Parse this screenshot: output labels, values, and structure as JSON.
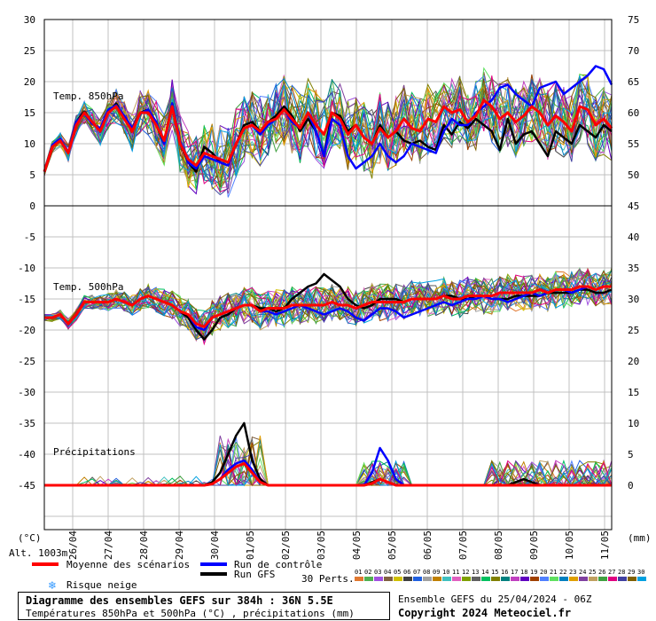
{
  "chart_data": {
    "type": "line",
    "title": "Diagramme des ensembles GEFS sur 384h : 36N 5.5E",
    "subtitle": "Températures 850hPa et 500hPa (°C) , précipitations (mm)",
    "run_info": "Ensemble GEFS du 25/04/2024 - 06Z",
    "copyright": "Copyright 2024 Meteociel.fr",
    "altitude": "Alt. 1003m",
    "unit_left": "(°C)",
    "unit_right": "(mm)",
    "x_labels": [
      "26/04",
      "27/04",
      "28/04",
      "29/04",
      "30/04",
      "01/05",
      "02/05",
      "03/05",
      "04/05",
      "05/05",
      "06/05",
      "07/05",
      "08/05",
      "09/05",
      "10/05",
      "11/05"
    ],
    "left_ticks": [
      30,
      25,
      20,
      15,
      10,
      5,
      0,
      -5,
      -10,
      -15,
      -20,
      -25,
      -30,
      -35,
      -40,
      -45
    ],
    "right_ticks_top": [
      75,
      70,
      65,
      60,
      55,
      50
    ],
    "right_ticks_bottom": [
      45,
      40,
      35,
      30,
      25,
      20,
      15,
      10,
      5,
      0
    ],
    "panels": {
      "t850": "Temp. 850hPa",
      "t500": "Temp. 500hPa",
      "precip": "Précipitations"
    },
    "legend": {
      "mean": "Moyenne des scénarios",
      "control": "Run de contrôle",
      "gfs": "Run GFS",
      "snow": "Risque neige",
      "perts": "30 Perts.",
      "pert_numbers": [
        "01",
        "02",
        "03",
        "04",
        "05",
        "06",
        "07",
        "08",
        "09",
        "10",
        "11",
        "12",
        "13",
        "14",
        "15",
        "16",
        "17",
        "18",
        "19",
        "20",
        "21",
        "22",
        "23",
        "24",
        "25",
        "26",
        "27",
        "28",
        "29",
        "30"
      ]
    },
    "colors": {
      "mean": "#ff0000",
      "control": "#0000ff",
      "gfs": "#000000",
      "pert_colors": [
        "#e07830",
        "#50b050",
        "#a050e0",
        "#806040",
        "#d0c000",
        "#404040",
        "#2060e0",
        "#a0a0a0",
        "#c08000",
        "#40c0c0",
        "#e060c0",
        "#80a000",
        "#606060",
        "#00c060",
        "#808000",
        "#008080",
        "#c040c0",
        "#6000c0",
        "#a04000",
        "#5080ff",
        "#60e060",
        "#0080c0",
        "#e0a000",
        "#8040a0",
        "#c0a060",
        "#40a040",
        "#e00080",
        "#4040a0",
        "#806000",
        "#00a0e0"
      ]
    },
    "series": [
      {
        "name": "Moyenne des scénarios",
        "panel": "t850",
        "values": [
          5.5,
          9.5,
          10.5,
          8.5,
          13,
          15,
          13.5,
          12,
          15,
          16,
          14,
          12,
          15,
          15,
          13,
          10.5,
          16,
          10,
          7.5,
          6.5,
          8.5,
          8,
          7.5,
          7,
          10,
          12.5,
          13,
          12,
          13.5,
          14,
          15.5,
          14,
          12.5,
          15,
          13,
          11.5,
          15,
          14,
          11.5,
          13,
          11,
          10,
          12.5,
          11,
          12,
          14,
          12.5,
          12,
          14,
          13.5,
          16,
          15,
          15.5,
          13.5,
          14.5,
          17,
          16,
          14,
          15,
          13.5,
          14.5,
          16,
          15,
          13,
          14.5,
          13.5,
          12,
          16,
          15.5,
          13,
          14,
          12.5
        ]
      },
      {
        "name": "Run de contrôle",
        "panel": "t850",
        "values": [
          5.5,
          9.8,
          10.8,
          8.5,
          13.5,
          14.8,
          13.2,
          12.5,
          15.5,
          16.2,
          14.5,
          12.5,
          14.8,
          15.5,
          13.5,
          10,
          16.5,
          10.5,
          7,
          6,
          8,
          7.5,
          7,
          6.5,
          10,
          12.5,
          13,
          11.5,
          13,
          14,
          15.5,
          13.5,
          12.5,
          15,
          12,
          8,
          14,
          13,
          8,
          6,
          7,
          8,
          10,
          8,
          7,
          8,
          10,
          9.5,
          9,
          8.5,
          12,
          14,
          13,
          13,
          15,
          16,
          17,
          19,
          19.5,
          18,
          17,
          16,
          19,
          19.5,
          20,
          18,
          19,
          20,
          21,
          22.5,
          22,
          19.5
        ]
      },
      {
        "name": "Run GFS",
        "panel": "t850",
        "values": [
          5.5,
          9.5,
          10.5,
          8.5,
          13.5,
          15.2,
          13.5,
          12,
          15,
          16.5,
          14,
          12.5,
          15,
          15.5,
          13,
          10,
          16.5,
          10,
          7,
          5.5,
          9.5,
          8.5,
          7,
          6.5,
          10,
          13,
          13.5,
          12,
          13.5,
          14.5,
          16,
          14.5,
          12,
          14,
          12,
          8,
          15,
          14.5,
          12,
          13,
          11,
          10,
          13,
          11,
          12,
          10.5,
          10,
          10.5,
          9.5,
          9,
          13,
          11.5,
          13.5,
          12.5,
          14,
          13,
          12,
          9,
          14,
          10,
          11.5,
          12,
          10,
          8,
          12,
          11,
          10,
          13,
          12,
          11,
          13,
          12
        ]
      },
      {
        "name": "Moyenne des scénarios",
        "panel": "t500",
        "values": [
          -18,
          -18,
          -17.5,
          -19,
          -17.5,
          -15.5,
          -15.5,
          -15.5,
          -15.5,
          -15,
          -15.5,
          -16,
          -15,
          -14.5,
          -15,
          -15.5,
          -16,
          -17,
          -17.5,
          -19,
          -19.5,
          -18,
          -17.5,
          -17,
          -16.5,
          -16,
          -16,
          -17,
          -16.5,
          -16.5,
          -16.5,
          -16,
          -16,
          -16,
          -16,
          -16,
          -15.5,
          -16,
          -16,
          -16.5,
          -16,
          -15.5,
          -15.5,
          -15.5,
          -15.5,
          -15.5,
          -15,
          -15,
          -15,
          -15,
          -14.5,
          -15,
          -15,
          -14.5,
          -14.5,
          -14.5,
          -14.5,
          -14,
          -14,
          -14,
          -14,
          -14,
          -13.5,
          -14,
          -13.5,
          -13.5,
          -13.5,
          -13,
          -13,
          -13.5,
          -13,
          -13
        ]
      },
      {
        "name": "Run de contrôle",
        "panel": "t500",
        "values": [
          -18,
          -18,
          -17.5,
          -19,
          -17.5,
          -15.5,
          -15.5,
          -15.5,
          -15.5,
          -15,
          -15.5,
          -16,
          -15,
          -14.5,
          -15,
          -15.5,
          -16,
          -17,
          -17.5,
          -19.5,
          -20,
          -18,
          -17.5,
          -17,
          -16.5,
          -16,
          -16,
          -17,
          -17,
          -17.5,
          -17,
          -16.5,
          -16,
          -16.5,
          -17,
          -17.5,
          -17,
          -16.5,
          -17,
          -18,
          -18.5,
          -17.5,
          -16.5,
          -16.5,
          -17,
          -18,
          -17.5,
          -17,
          -16.5,
          -16,
          -15.5,
          -16,
          -15.5,
          -15,
          -15,
          -14.5,
          -15,
          -15,
          -15.5,
          -15,
          -14.5,
          -14,
          -14.5,
          -14,
          -13.5,
          -13.5,
          -14,
          -13.5,
          -13,
          -13.5,
          -13,
          -13
        ]
      },
      {
        "name": "Run GFS",
        "panel": "t500",
        "values": [
          -18,
          -18,
          -17.5,
          -19,
          -17.5,
          -15.5,
          -15.5,
          -15.5,
          -15.5,
          -15,
          -15.5,
          -16,
          -15,
          -14.5,
          -15,
          -15.5,
          -16,
          -17,
          -18,
          -20,
          -21.5,
          -20,
          -18,
          -17.5,
          -16.5,
          -16,
          -16,
          -16.5,
          -16.5,
          -17,
          -16.5,
          -15,
          -14,
          -13,
          -12.5,
          -11,
          -12,
          -13,
          -15,
          -16,
          -16.5,
          -16,
          -15,
          -15,
          -15,
          -15.5,
          -15,
          -15,
          -15,
          -15,
          -14.5,
          -14.5,
          -15,
          -15,
          -14.5,
          -14.5,
          -15,
          -15,
          -15,
          -14.5,
          -14.5,
          -14.5,
          -14.5,
          -14,
          -14,
          -14,
          -14,
          -13.5,
          -13.5,
          -14,
          -14,
          -13.5
        ]
      },
      {
        "name": "Moyenne des scénarios",
        "panel": "precip",
        "values": [
          0,
          0,
          0,
          0,
          0,
          0,
          0,
          0,
          0,
          0,
          0,
          0,
          0,
          0,
          0,
          0,
          0,
          0,
          0,
          0,
          0,
          0.2,
          1,
          2,
          3,
          3.5,
          2,
          0.5,
          0,
          0,
          0,
          0,
          0,
          0,
          0,
          0,
          0,
          0,
          0,
          0,
          0,
          0.3,
          1,
          0.5,
          0,
          0,
          0,
          0,
          0,
          0,
          0,
          0,
          0,
          0,
          0,
          0,
          0,
          0,
          0,
          0,
          0,
          0,
          0,
          0,
          0,
          0,
          0,
          0,
          0,
          0,
          0,
          0
        ]
      },
      {
        "name": "Run de contrôle",
        "panel": "precip",
        "values": [
          0,
          0,
          0,
          0,
          0,
          0,
          0,
          0,
          0,
          0,
          0,
          0,
          0,
          0,
          0,
          0,
          0,
          0,
          0,
          0,
          0,
          0.2,
          1,
          2.5,
          3.5,
          4,
          2.5,
          0.5,
          0,
          0,
          0,
          0,
          0,
          0,
          0,
          0,
          0,
          0,
          0,
          0,
          0,
          2,
          6,
          4,
          1,
          0,
          0,
          0,
          0,
          0,
          0,
          0,
          0,
          0,
          0,
          0,
          0,
          0,
          0,
          0,
          0,
          0,
          0,
          0,
          0,
          0,
          0,
          0,
          0,
          0,
          0,
          0
        ]
      },
      {
        "name": "Run GFS",
        "panel": "precip",
        "values": [
          0,
          0,
          0,
          0,
          0,
          0,
          0,
          0,
          0,
          0,
          0,
          0,
          0,
          0,
          0,
          0,
          0,
          0,
          0,
          0,
          0,
          0.5,
          2,
          5,
          8,
          10,
          4,
          1,
          0,
          0,
          0,
          0,
          0,
          0,
          0,
          0,
          0,
          0,
          0,
          0,
          0,
          0.5,
          1,
          0.5,
          0,
          0,
          0,
          0,
          0,
          0,
          0,
          0,
          0,
          0,
          0,
          0,
          0,
          0,
          0,
          0.5,
          1,
          0.5,
          0,
          0,
          0,
          0,
          0,
          0,
          0,
          0
        ]
      }
    ]
  }
}
